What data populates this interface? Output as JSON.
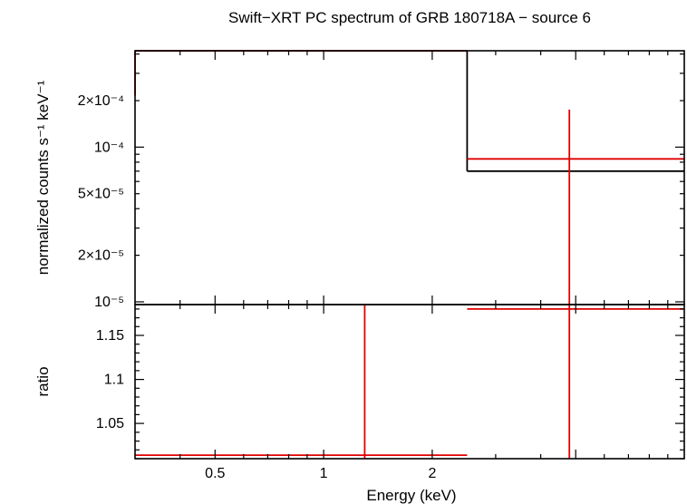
{
  "chart_data": [
    {
      "type": "scatter",
      "title": "Swift−XRT PC spectrum of GRB 180718A − source 6",
      "ylabel": "normalized counts s⁻¹ keV⁻¹",
      "xlabel": "Energy (keV)",
      "x_scale": "log",
      "y_scale": "log",
      "xlim": [
        0.3,
        10
      ],
      "ylim": [
        9.6e-06,
        0.00042
      ],
      "y_ticks": [
        {
          "value": 1e-05,
          "label": "10⁻⁵"
        },
        {
          "value": 2e-05,
          "label": "2×10⁻⁵"
        },
        {
          "value": 5e-05,
          "label": "5×10⁻⁵"
        },
        {
          "value": 0.0001,
          "label": "10⁻⁴"
        },
        {
          "value": 0.0002,
          "label": "2×10⁻⁴"
        }
      ],
      "data_points": [
        {
          "x": 0.3,
          "x_low": 0.3,
          "x_high": 2.5,
          "y": 0.00042,
          "y_low": 0.000215,
          "y_high": 0.00042
        },
        {
          "x": 4.8,
          "x_low": 2.5,
          "x_high": 10,
          "y": 8.4e-05,
          "y_low": 9.6e-06,
          "y_high": 0.000175
        }
      ],
      "model_steps": [
        {
          "x_low": 0.3,
          "x_high": 2.5,
          "y": 0.00042
        },
        {
          "x_low": 2.5,
          "x_high": 10,
          "y": 7e-05
        }
      ],
      "colors": {
        "data": "#e00000",
        "model": "#000000"
      }
    },
    {
      "type": "scatter",
      "ylabel": "ratio",
      "xlabel": "Energy (keV)",
      "x_scale": "log",
      "xlim": [
        0.3,
        10
      ],
      "ylim": [
        1.01,
        1.185
      ],
      "y_ticks": [
        {
          "value": 1.05,
          "label": "1.05"
        },
        {
          "value": 1.1,
          "label": "1.1"
        },
        {
          "value": 1.15,
          "label": "1.15"
        }
      ],
      "x_ticks": [
        {
          "value": 0.5,
          "label": "0.5"
        },
        {
          "value": 1,
          "label": "1"
        },
        {
          "value": 2,
          "label": "2"
        }
      ],
      "data_points": [
        {
          "x": 1.3,
          "x_low": 0.3,
          "x_high": 2.5,
          "y": 1.014,
          "y_low": 1.01,
          "y_high": 1.185
        },
        {
          "x": 4.8,
          "x_low": 2.5,
          "x_high": 10,
          "y": 1.18,
          "y_low": 1.01,
          "y_high": 1.185
        }
      ],
      "colors": {
        "data": "#e00000"
      }
    }
  ]
}
